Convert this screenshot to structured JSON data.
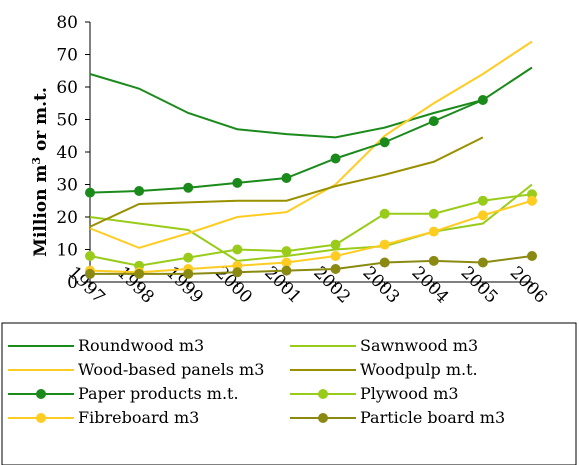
{
  "chart_data": {
    "type": "line",
    "categories": [
      "1997",
      "1998",
      "1999",
      "2000",
      "2001",
      "2002",
      "2003",
      "2004",
      "2005",
      "2006"
    ],
    "ylabel": "Million m3 or m.t.",
    "ylim": [
      0,
      80
    ],
    "yticks": [
      0,
      10,
      20,
      30,
      40,
      50,
      60,
      70,
      80
    ],
    "grid": false,
    "legend_position": "bottom",
    "series": [
      {
        "name": "Roundwood m3",
        "color": "#1a8a1a",
        "marker": false,
        "values": [
          64,
          59.5,
          52,
          47,
          45.5,
          44.5,
          47.5,
          52,
          56,
          66
        ]
      },
      {
        "name": "Sawnwood m3",
        "color": "#99cc1a",
        "marker": false,
        "values": [
          20,
          18,
          16,
          6.5,
          8,
          10,
          11,
          15.5,
          18,
          30
        ]
      },
      {
        "name": "Wood-based panels m3",
        "color": "#ffcc22",
        "marker": false,
        "values": [
          16.5,
          10.5,
          15,
          20,
          21.5,
          30,
          45,
          55,
          64,
          74
        ]
      },
      {
        "name": "Woodpulp m.t.",
        "color": "#999000",
        "marker": false,
        "values": [
          17,
          24,
          24.5,
          25,
          25,
          29.5,
          33,
          37,
          44.5,
          null
        ]
      },
      {
        "name": "Paper products m.t.",
        "color": "#1a8a1a",
        "marker": true,
        "values": [
          27.5,
          28,
          29,
          30.5,
          32,
          38,
          43,
          49.5,
          56,
          null
        ]
      },
      {
        "name": "Plywood m3",
        "color": "#99cc1a",
        "marker": true,
        "values": [
          8,
          5,
          7.5,
          10,
          9.5,
          11.5,
          21,
          21,
          25,
          27
        ]
      },
      {
        "name": "Fibreboard m3",
        "color": "#ffcc22",
        "marker": true,
        "values": [
          3.5,
          3,
          4,
          5,
          6,
          8,
          11.5,
          15.5,
          20.5,
          25
        ]
      },
      {
        "name": "Particle board m3",
        "color": "#8a8a12",
        "marker": true,
        "values": [
          2.5,
          2.5,
          2.5,
          3,
          3.5,
          4,
          6,
          6.5,
          6,
          8
        ]
      }
    ]
  }
}
